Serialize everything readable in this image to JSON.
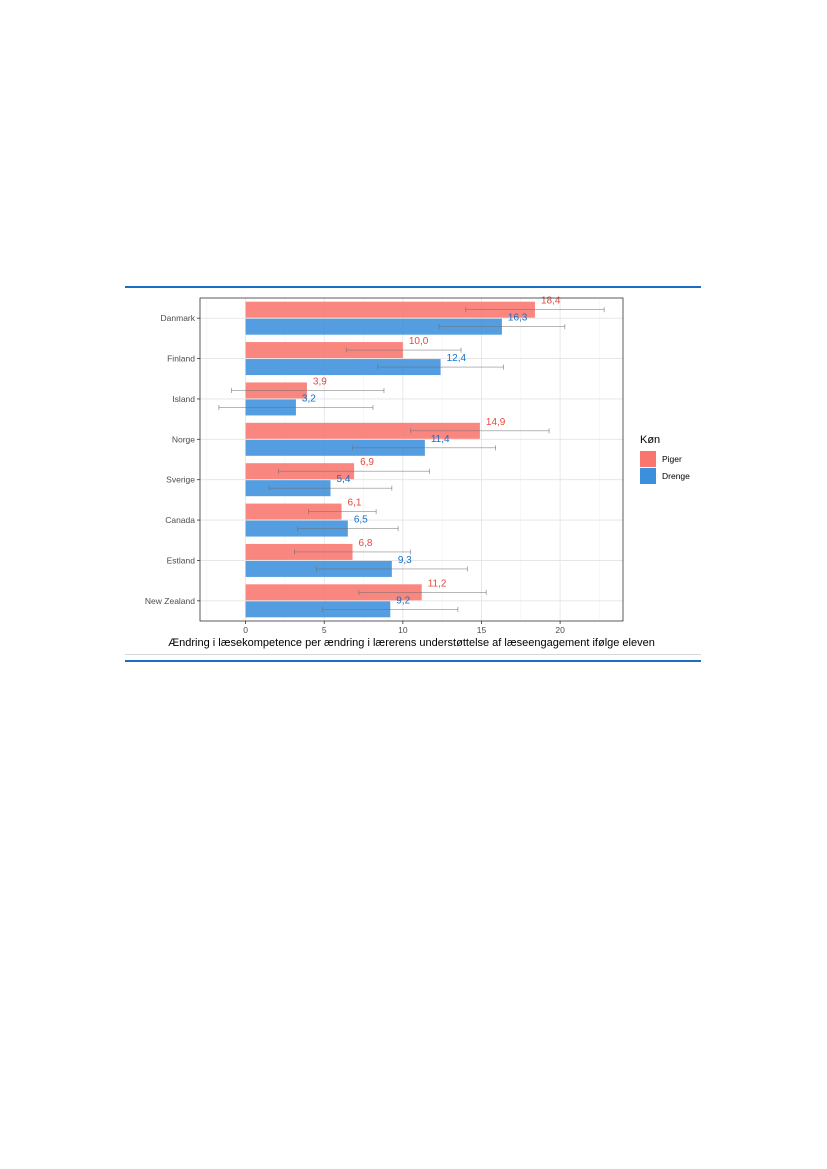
{
  "chart_data": {
    "type": "bar",
    "orientation": "horizontal",
    "categories": [
      "Danmark",
      "Finland",
      "Island",
      "Norge",
      "Sverige",
      "Canada",
      "Estland",
      "New Zealand"
    ],
    "series": [
      {
        "name": "Piger",
        "color": "#f8766d",
        "label_color": "#e8473f",
        "values": [
          18.4,
          10.0,
          3.9,
          14.9,
          6.9,
          6.1,
          6.8,
          11.2
        ],
        "labels": [
          "18,4",
          "10,0",
          "3,9",
          "14,9",
          "6,9",
          "6,1",
          "6,8",
          "11,2"
        ],
        "ci_low": [
          14.0,
          6.4,
          -0.9,
          10.5,
          2.1,
          4.0,
          3.1,
          7.2
        ],
        "ci_high": [
          22.8,
          13.7,
          8.8,
          19.3,
          11.7,
          8.3,
          10.5,
          15.3
        ]
      },
      {
        "name": "Drenge",
        "color": "#3b8fdc",
        "label_color": "#1470c8",
        "values": [
          16.3,
          12.4,
          3.2,
          11.4,
          5.4,
          6.5,
          9.3,
          9.2
        ],
        "labels": [
          "16,3",
          "12,4",
          "3,2",
          "11,4",
          "5,4",
          "6,5",
          "9,3",
          "9,2"
        ],
        "ci_low": [
          12.3,
          8.4,
          -1.7,
          6.8,
          1.5,
          3.3,
          4.5,
          4.9
        ],
        "ci_high": [
          20.3,
          16.4,
          8.1,
          15.9,
          9.3,
          9.7,
          14.1,
          13.5
        ]
      }
    ],
    "xlabel": "Ændring i læsekompetence per ændring i lærerens understøttelse af læseengagement ifølge eleven",
    "xlim": [
      -2.9,
      24.0
    ],
    "xticks": [
      0,
      5,
      10,
      15,
      20
    ],
    "legend": {
      "title": "Køn",
      "position": "right"
    },
    "grid": true
  }
}
